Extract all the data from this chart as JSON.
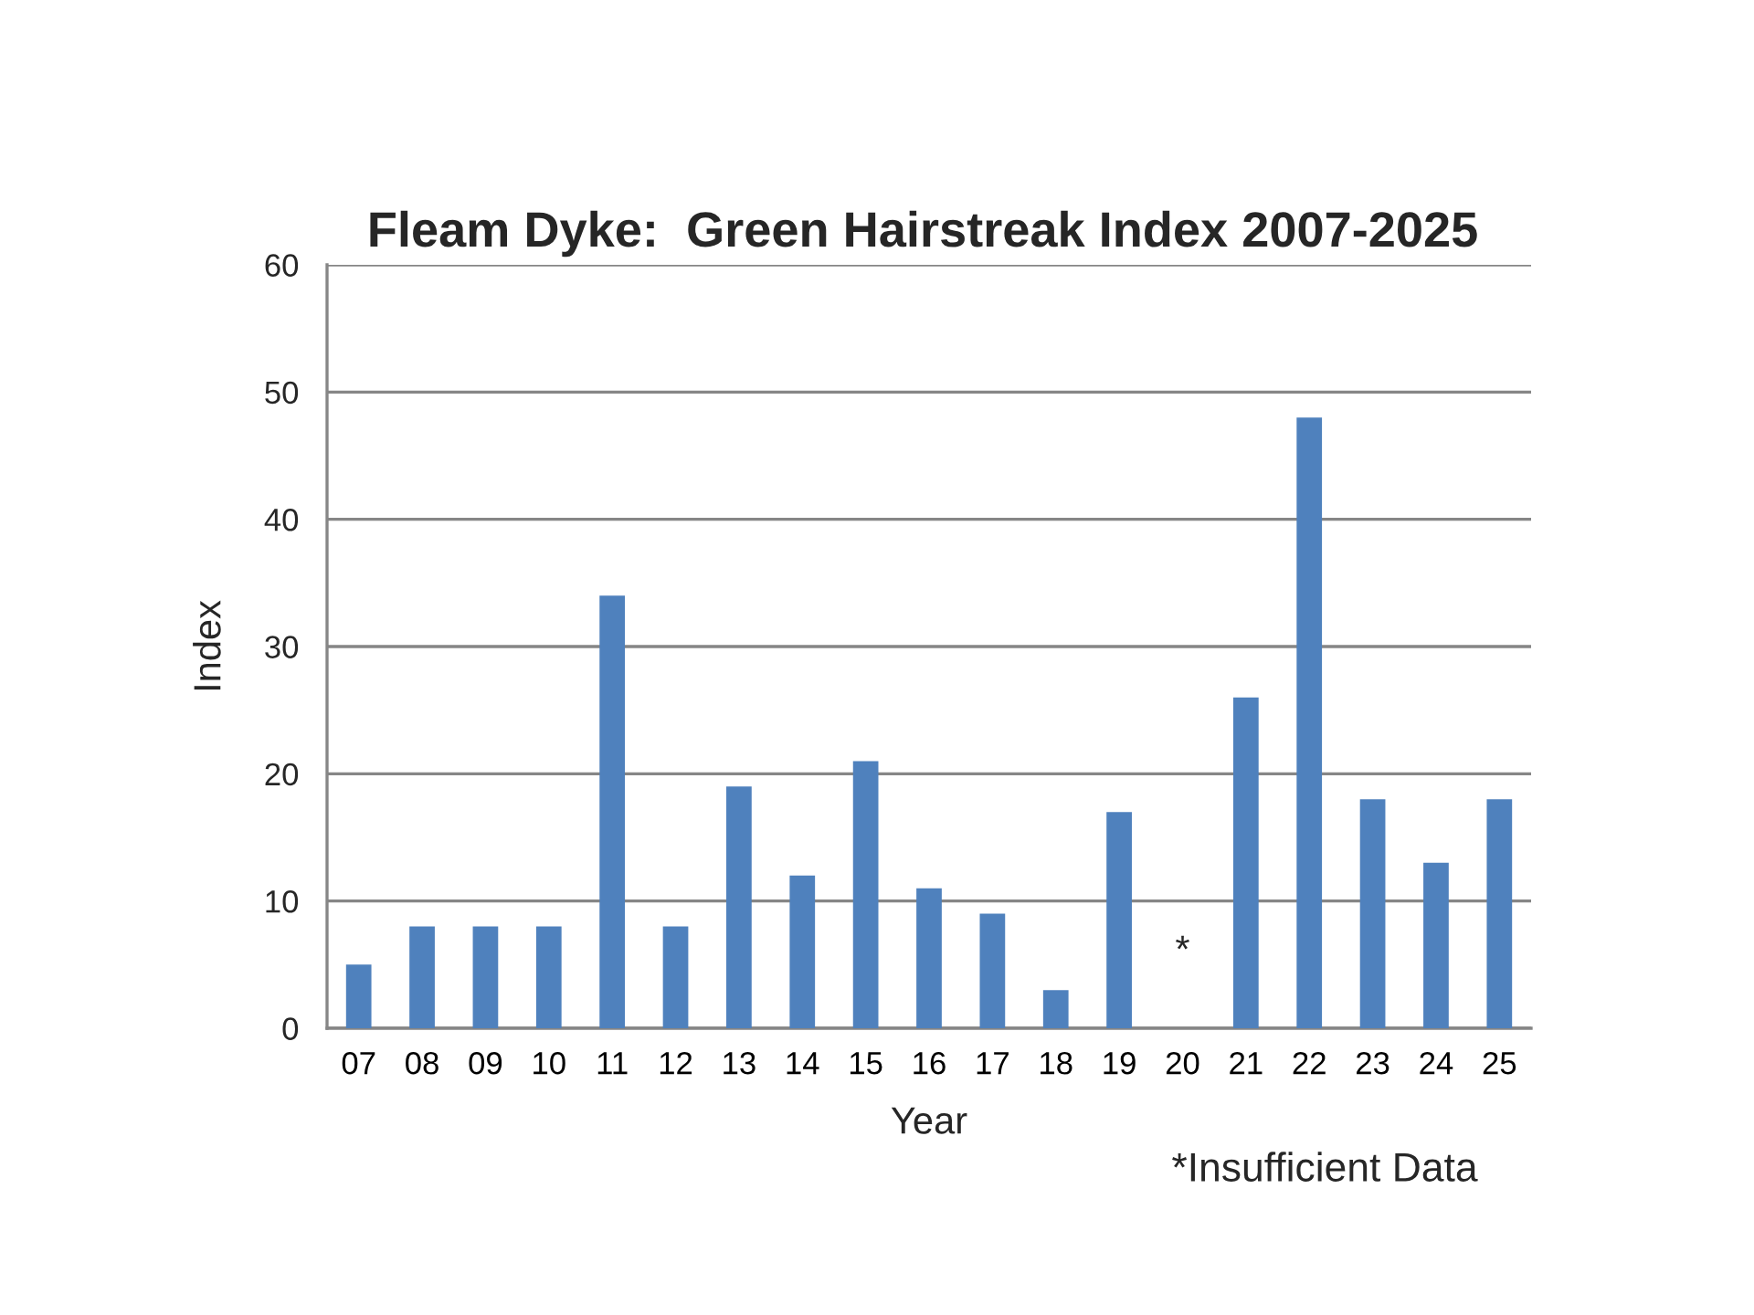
{
  "chart_data": {
    "type": "bar",
    "title": "Fleam Dyke:  Green Hairstreak Index 2007-2025",
    "xlabel": "Year",
    "ylabel": "Index",
    "categories": [
      "07",
      "08",
      "09",
      "10",
      "11",
      "12",
      "13",
      "14",
      "15",
      "16",
      "17",
      "18",
      "19",
      "20",
      "21",
      "22",
      "23",
      "24",
      "25"
    ],
    "values": [
      5,
      8,
      8,
      8,
      34,
      8,
      19,
      12,
      21,
      11,
      9,
      3,
      17,
      null,
      26,
      48,
      18,
      13,
      18
    ],
    "color": "#4f81bd",
    "ylim": [
      0,
      60
    ],
    "yticks": [
      0,
      10,
      20,
      30,
      40,
      50,
      60
    ],
    "grid": "y",
    "annotations": [
      "*",
      "*Insufficient Data"
    ]
  }
}
